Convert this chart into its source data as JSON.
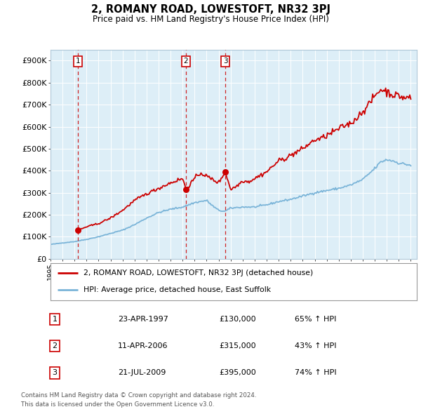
{
  "title": "2, ROMANY ROAD, LOWESTOFT, NR32 3PJ",
  "subtitle": "Price paid vs. HM Land Registry's House Price Index (HPI)",
  "xmin": 1995,
  "xmax": 2025.5,
  "ymin": 0,
  "ymax": 950000,
  "yticks": [
    0,
    100000,
    200000,
    300000,
    400000,
    500000,
    600000,
    700000,
    800000,
    900000
  ],
  "purchases": [
    {
      "year": 1997.3,
      "price": 130000,
      "label": "1"
    },
    {
      "year": 2006.28,
      "price": 315000,
      "label": "2"
    },
    {
      "year": 2009.55,
      "price": 395000,
      "label": "3"
    }
  ],
  "hpi_color": "#7ab4d8",
  "price_color": "#cc0000",
  "vline_color": "#cc0000",
  "bg_color": "#ddeef7",
  "legend_entries": [
    "2, ROMANY ROAD, LOWESTOFT, NR32 3PJ (detached house)",
    "HPI: Average price, detached house, East Suffolk"
  ],
  "table_rows": [
    {
      "num": "1",
      "date": "23-APR-1997",
      "price": "£130,000",
      "change": "65% ↑ HPI"
    },
    {
      "num": "2",
      "date": "11-APR-2006",
      "price": "£315,000",
      "change": "43% ↑ HPI"
    },
    {
      "num": "3",
      "date": "21-JUL-2009",
      "price": "£395,000",
      "change": "74% ↑ HPI"
    }
  ],
  "footnote1": "Contains HM Land Registry data © Crown copyright and database right 2024.",
  "footnote2": "This data is licensed under the Open Government Licence v3.0.",
  "hpi_waypoints": [
    [
      1995.0,
      65000
    ],
    [
      1996.0,
      72000
    ],
    [
      1997.0,
      78000
    ],
    [
      1998.0,
      88000
    ],
    [
      1999.0,
      100000
    ],
    [
      2000.0,
      115000
    ],
    [
      2001.0,
      130000
    ],
    [
      2002.0,
      155000
    ],
    [
      2003.0,
      185000
    ],
    [
      2004.0,
      210000
    ],
    [
      2005.0,
      225000
    ],
    [
      2006.0,
      235000
    ],
    [
      2007.0,
      255000
    ],
    [
      2008.0,
      265000
    ],
    [
      2008.5,
      240000
    ],
    [
      2009.0,
      220000
    ],
    [
      2009.5,
      215000
    ],
    [
      2010.0,
      230000
    ],
    [
      2011.0,
      235000
    ],
    [
      2012.0,
      235000
    ],
    [
      2013.0,
      245000
    ],
    [
      2014.0,
      260000
    ],
    [
      2015.0,
      270000
    ],
    [
      2016.0,
      285000
    ],
    [
      2017.0,
      300000
    ],
    [
      2018.0,
      310000
    ],
    [
      2019.0,
      320000
    ],
    [
      2020.0,
      335000
    ],
    [
      2021.0,
      360000
    ],
    [
      2022.0,
      410000
    ],
    [
      2022.5,
      440000
    ],
    [
      2023.0,
      450000
    ],
    [
      2023.5,
      445000
    ],
    [
      2024.0,
      435000
    ],
    [
      2024.5,
      430000
    ],
    [
      2025.0,
      425000
    ]
  ],
  "price_waypoints": [
    [
      1997.25,
      125000
    ],
    [
      1997.3,
      130000
    ],
    [
      1998.0,
      145000
    ],
    [
      1999.0,
      160000
    ],
    [
      2000.0,
      185000
    ],
    [
      2001.0,
      220000
    ],
    [
      2002.0,
      265000
    ],
    [
      2003.0,
      295000
    ],
    [
      2004.0,
      320000
    ],
    [
      2005.0,
      345000
    ],
    [
      2005.5,
      355000
    ],
    [
      2006.0,
      365000
    ],
    [
      2006.28,
      315000
    ],
    [
      2006.5,
      330000
    ],
    [
      2007.0,
      365000
    ],
    [
      2007.5,
      390000
    ],
    [
      2008.0,
      375000
    ],
    [
      2008.5,
      360000
    ],
    [
      2009.0,
      345000
    ],
    [
      2009.55,
      395000
    ],
    [
      2010.0,
      315000
    ],
    [
      2010.5,
      330000
    ],
    [
      2011.0,
      355000
    ],
    [
      2011.5,
      350000
    ],
    [
      2012.0,
      365000
    ],
    [
      2012.5,
      380000
    ],
    [
      2013.0,
      395000
    ],
    [
      2013.5,
      420000
    ],
    [
      2014.0,
      445000
    ],
    [
      2014.5,
      455000
    ],
    [
      2015.0,
      470000
    ],
    [
      2015.5,
      485000
    ],
    [
      2016.0,
      500000
    ],
    [
      2016.5,
      520000
    ],
    [
      2017.0,
      540000
    ],
    [
      2017.5,
      545000
    ],
    [
      2018.0,
      560000
    ],
    [
      2018.5,
      575000
    ],
    [
      2019.0,
      590000
    ],
    [
      2019.5,
      605000
    ],
    [
      2020.0,
      615000
    ],
    [
      2020.5,
      640000
    ],
    [
      2021.0,
      670000
    ],
    [
      2021.5,
      700000
    ],
    [
      2022.0,
      740000
    ],
    [
      2022.5,
      770000
    ],
    [
      2023.0,
      760000
    ],
    [
      2023.5,
      745000
    ],
    [
      2024.0,
      740000
    ],
    [
      2024.5,
      730000
    ],
    [
      2025.0,
      735000
    ]
  ]
}
